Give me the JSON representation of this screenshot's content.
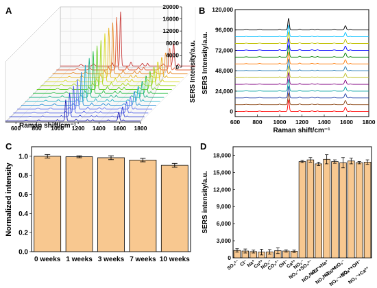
{
  "panels": {
    "a": "A",
    "b": "B",
    "c": "C",
    "d": "D"
  },
  "chart_data": [
    {
      "id": "A",
      "type": "line",
      "style": "3d-waterfall",
      "xlabel": "Raman shift/cm⁻¹",
      "ylabel": "SERS Intensity/a.u.",
      "x_ticks": [
        600,
        800,
        1000,
        1200,
        1400,
        1600,
        1800
      ],
      "y_ticks": [
        0,
        4000,
        8000,
        12000,
        16000,
        20000
      ],
      "ylim": [
        0,
        20000
      ],
      "xlim": [
        500,
        1800
      ],
      "spectra_count": 15,
      "peak_positions": [
        1080,
        1590
      ],
      "peak_heights": [
        18000,
        17500,
        17000,
        16500,
        16000,
        15000,
        14500,
        14000,
        13000,
        12000,
        11000,
        10000,
        9000,
        8000,
        7000
      ],
      "colors": [
        "#1f1fb4",
        "#2e3fd6",
        "#4b5ce8",
        "#6a7cf0",
        "#2a8fd8",
        "#20b0c8",
        "#1fb38a",
        "#2ec04a",
        "#6ccf2a",
        "#a8d81f",
        "#d8d81f",
        "#e8b41f",
        "#e88a2a",
        "#e0603a",
        "#c83a3a"
      ]
    },
    {
      "id": "B",
      "type": "line",
      "xlabel": "Raman shift/cm⁻¹",
      "ylabel": "SERS Intensity/a.u.",
      "x_ticks": [
        600,
        800,
        1000,
        1200,
        1400,
        1600,
        1800
      ],
      "xlim": [
        600,
        1800
      ],
      "y_ticks": [
        0,
        24000,
        48000,
        72000,
        96000,
        120000
      ],
      "y_tick_labels": [
        "0",
        "24,000",
        "48,000",
        "72,000",
        "96,000",
        "120,000"
      ],
      "ylim": [
        -6000,
        120000
      ],
      "offset_step": 8000,
      "offsets": [
        0,
        8000,
        16000,
        24000,
        32000,
        40000,
        48000,
        56000,
        64000,
        72000,
        80000,
        88000,
        96000
      ],
      "main_peak": {
        "x": 1080,
        "height": 14000
      },
      "second_peak": {
        "x": 1590,
        "height": 5000
      },
      "colors": [
        "#ff0000",
        "#8b4513",
        "#1f3fa8",
        "#00a0a0",
        "#800080",
        "#bcbd22",
        "#1f77b4",
        "#ff7f0e",
        "#008000",
        "#0000ff",
        "#c0c000",
        "#00bfff",
        "#000000"
      ]
    },
    {
      "id": "C",
      "type": "bar",
      "categories": [
        "0 weeks",
        "1 weeks",
        "3 weeks",
        "7 weeks",
        "10 weeks"
      ],
      "values": [
        1.0,
        0.995,
        0.985,
        0.96,
        0.905
      ],
      "errors": [
        0.018,
        0.01,
        0.02,
        0.018,
        0.02
      ],
      "ylabel": "Normalized intensity",
      "y_ticks": [
        0.0,
        0.2,
        0.4,
        0.6,
        0.8,
        1.0
      ],
      "y_tick_labels": [
        "0.0",
        "0.2",
        "0.4",
        "0.6",
        "0.8",
        "1.0"
      ],
      "ylim": [
        0,
        1.1
      ],
      "bar_color": "#f8c890"
    },
    {
      "id": "D",
      "type": "bar",
      "ylabel": "SERS intensity/a.u.",
      "y_ticks": [
        0,
        3000,
        6000,
        9000,
        12000,
        15000,
        18000
      ],
      "y_tick_labels": [
        "0",
        "3,000",
        "6,000",
        "9,000",
        "12,000",
        "15,000",
        "18,000"
      ],
      "ylim": [
        0,
        19500
      ],
      "categories": [
        {
          "base": "SO",
          "sub": "4",
          "sup": "2-",
          "tail": ""
        },
        {
          "base": "Cl",
          "sub": "",
          "sup": "-",
          "tail": ""
        },
        {
          "base": "Na",
          "sub": "",
          "sup": "+",
          "tail": ""
        },
        {
          "base": "Cu",
          "sub": "",
          "sup": "2+",
          "tail": ""
        },
        {
          "base": "NO",
          "sub": "3",
          "sup": "-",
          "tail": ""
        },
        {
          "base": "CO",
          "sub": "3",
          "sup": "2-",
          "tail": ""
        },
        {
          "base": "OH",
          "sub": "",
          "sup": "-",
          "tail": ""
        },
        {
          "base": "Ca",
          "sub": "",
          "sup": "2+",
          "tail": ""
        },
        {
          "base": "NO",
          "sub": "2",
          "sup": "-",
          "tail": ""
        },
        {
          "base": "NO",
          "sub": "2",
          "sup": "-",
          "tail": "+SO₄²⁻"
        },
        {
          "base": "NO",
          "sub": "2",
          "sup": "-",
          "tail": "+Cl⁻"
        },
        {
          "base": "NO",
          "sub": "2",
          "sup": "-",
          "tail": "+Na⁺"
        },
        {
          "base": "NO",
          "sub": "2",
          "sup": "-",
          "tail": "+Cu²⁺"
        },
        {
          "base": "NO",
          "sub": "2",
          "sup": "-",
          "tail": "+NO₃⁻"
        },
        {
          "base": "NO",
          "sub": "2",
          "sup": "-",
          "tail": "+CO₃²⁻"
        },
        {
          "base": "NO",
          "sub": "2",
          "sup": "-",
          "tail": "+OH⁻"
        },
        {
          "base": "NO",
          "sub": "2",
          "sup": "-",
          "tail": "+Ca²⁺"
        }
      ],
      "category_labels": [
        "SO₄²⁻",
        "Cl⁻",
        "Na⁺",
        "Cu²⁺",
        "NO₃⁻",
        "CO₃²⁻",
        "OH⁻",
        "Ca²⁺",
        "NO₂⁻",
        "NO₂⁻+SO₄²⁻",
        "NO₂⁻+Cl⁻",
        "NO₂⁻+Na⁺",
        "NO₂⁻+Cu²⁺",
        "NO₂⁻+NO₃⁻",
        "NO₂⁻+CO₃²⁻",
        "NO₂⁻+OH⁻",
        "NO₂⁻+Ca²⁺"
      ],
      "values": [
        1300,
        1200,
        1100,
        1000,
        1050,
        1250,
        1200,
        1150,
        16900,
        17200,
        16500,
        17300,
        16900,
        16700,
        17000,
        16700,
        16800
      ],
      "errors": [
        300,
        350,
        250,
        500,
        400,
        500,
        200,
        200,
        200,
        400,
        300,
        800,
        300,
        900,
        500,
        200,
        400
      ],
      "bar_color": "#f8c890"
    }
  ]
}
